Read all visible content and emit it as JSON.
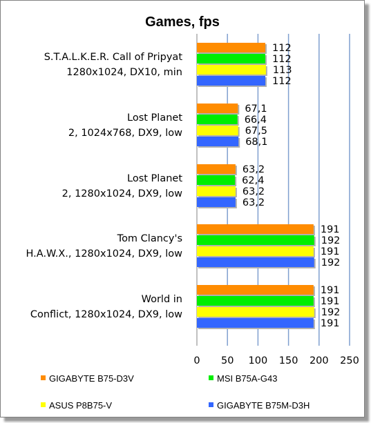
{
  "chart_data": {
    "type": "bar",
    "orientation": "horizontal",
    "title": "Games, fps",
    "categories": [
      [
        "S.T.A.L.K.E.R. Call of Pripyat",
        "1280x1024, DX10, min"
      ],
      [
        "Lost Planet",
        "2, 1024x768, DX9, low"
      ],
      [
        "Lost Planet",
        "2, 1280x1024, DX9, low"
      ],
      [
        "Tom Clancy's",
        "H.A.W.X., 1280x1024, DX9, low"
      ],
      [
        "World in",
        "Conflict, 1280x1024, DX9, low"
      ]
    ],
    "series": [
      {
        "name": "GIGABYTE B75-D3V",
        "color": "#ff8c00",
        "values": [
          112,
          67.1,
          63.2,
          191,
          191
        ],
        "labels": [
          "112",
          "67,1",
          "63,2",
          "191",
          "191"
        ]
      },
      {
        "name": "MSI B75A-G43",
        "color": "#00ee00",
        "values": [
          112,
          66.4,
          62.4,
          192,
          191
        ],
        "labels": [
          "112",
          "66,4",
          "62,4",
          "192",
          "191"
        ]
      },
      {
        "name": "ASUS P8B75-V",
        "color": "#ffff00",
        "values": [
          113,
          67.5,
          63.2,
          191,
          192
        ],
        "labels": [
          "113",
          "67,5",
          "63,2",
          "191",
          "192"
        ]
      },
      {
        "name": "GIGABYTE B75M-D3H",
        "color": "#3366ff",
        "values": [
          112,
          68.1,
          63.2,
          192,
          191
        ],
        "labels": [
          "112",
          "68,1",
          "63,2",
          "192",
          "191"
        ]
      }
    ],
    "xlim": [
      0,
      250
    ],
    "xticks": [
      "0",
      "50",
      "100",
      "150",
      "200",
      "250"
    ],
    "grid": {
      "vertical": true,
      "color": "#7f9fcf"
    },
    "legend_position": "bottom"
  }
}
